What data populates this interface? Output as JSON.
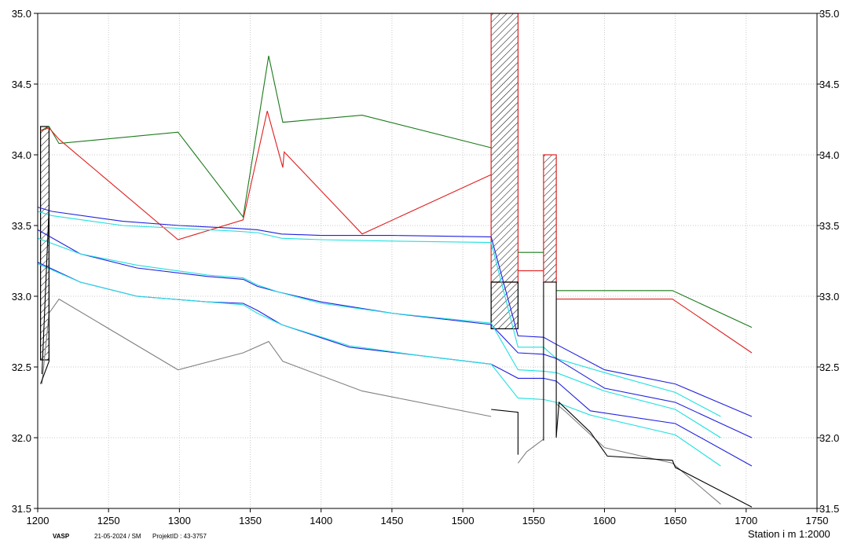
{
  "footer": {
    "company": "VASP",
    "date_user": "21-05-2024 / SM",
    "project": "ProjektID : 43-3757",
    "station_label": "Station i m  1:2000"
  },
  "chart_data": {
    "type": "line",
    "xlim": [
      1200,
      1750
    ],
    "ylim": [
      31.5,
      35.0
    ],
    "x_ticks": [
      1200,
      1250,
      1300,
      1350,
      1400,
      1450,
      1500,
      1550,
      1600,
      1650,
      1700,
      1750
    ],
    "x_tick_labels": [
      "1200",
      "1250",
      "1300",
      "1350",
      "1400",
      "1450",
      "1500",
      "1550",
      "1600",
      "1650",
      "1700",
      "1750"
    ],
    "y_ticks": [
      31.5,
      32.0,
      32.5,
      33.0,
      33.5,
      34.0,
      34.5,
      35.0
    ],
    "y_tick_labels": [
      "31.5",
      "32.0",
      "32.5",
      "33.0",
      "33.5",
      "34.0",
      "34.5",
      "35.0"
    ],
    "grid": true,
    "colors": {
      "terrain_green": "#1a7a1a",
      "terrain_red": "#e02020",
      "water_blue": "#2020e0",
      "water_cyan": "#20e0e0",
      "pipe_gray": "#808080",
      "pipe_black": "#000000",
      "hatch_red": "#e02020",
      "hatch_black": "#000000"
    },
    "series": [
      {
        "color": "#1a7a1a",
        "points": [
          [
            1202,
            34.17
          ],
          [
            1208,
            34.2
          ],
          [
            1215,
            34.08
          ],
          [
            1299,
            34.16
          ],
          [
            1345,
            33.56
          ],
          [
            1363,
            34.7
          ],
          [
            1373,
            34.23
          ],
          [
            1429,
            34.28
          ],
          [
            1520,
            34.05
          ]
        ]
      },
      {
        "color": "#1a7a1a",
        "points": [
          [
            1539,
            33.31
          ],
          [
            1557,
            33.31
          ]
        ]
      },
      {
        "color": "#1a7a1a",
        "points": [
          [
            1566,
            33.04
          ],
          [
            1648,
            33.04
          ],
          [
            1704,
            32.78
          ]
        ]
      },
      {
        "color": "#e02020",
        "points": [
          [
            1202,
            34.17
          ],
          [
            1208,
            34.19
          ],
          [
            1215,
            34.11
          ],
          [
            1299,
            33.4
          ],
          [
            1345,
            33.54
          ],
          [
            1362,
            34.31
          ],
          [
            1373,
            33.91
          ],
          [
            1374,
            34.02
          ],
          [
            1429,
            33.44
          ],
          [
            1520,
            33.86
          ]
        ]
      },
      {
        "color": "#e02020",
        "points": [
          [
            1539,
            33.18
          ],
          [
            1557,
            33.18
          ]
        ]
      },
      {
        "color": "#e02020",
        "points": [
          [
            1566,
            32.98
          ],
          [
            1648,
            32.98
          ],
          [
            1704,
            32.6
          ]
        ]
      },
      {
        "color": "#2020e0",
        "points": [
          [
            1200,
            33.63
          ],
          [
            1210,
            33.6
          ],
          [
            1260,
            33.53
          ],
          [
            1300,
            33.5
          ],
          [
            1340,
            33.48
          ],
          [
            1355,
            33.47
          ],
          [
            1372,
            33.44
          ],
          [
            1400,
            33.43
          ],
          [
            1450,
            33.43
          ],
          [
            1520,
            33.42
          ],
          [
            1539,
            32.72
          ],
          [
            1557,
            32.71
          ],
          [
            1566,
            32.66
          ],
          [
            1600,
            32.48
          ],
          [
            1650,
            32.38
          ],
          [
            1704,
            32.15
          ]
        ]
      },
      {
        "color": "#20e0e0",
        "points": [
          [
            1200,
            33.6
          ],
          [
            1210,
            33.57
          ],
          [
            1260,
            33.5
          ],
          [
            1300,
            33.48
          ],
          [
            1340,
            33.46
          ],
          [
            1355,
            33.45
          ],
          [
            1372,
            33.41
          ],
          [
            1400,
            33.4
          ],
          [
            1450,
            33.39
          ],
          [
            1520,
            33.38
          ],
          [
            1539,
            32.64
          ],
          [
            1557,
            32.64
          ],
          [
            1566,
            32.56
          ],
          [
            1600,
            32.46
          ],
          [
            1650,
            32.32
          ],
          [
            1682,
            32.15
          ]
        ]
      },
      {
        "color": "#2020e0",
        "points": [
          [
            1200,
            33.47
          ],
          [
            1230,
            33.3
          ],
          [
            1270,
            33.2
          ],
          [
            1320,
            33.14
          ],
          [
            1345,
            33.12
          ],
          [
            1355,
            33.07
          ],
          [
            1370,
            33.03
          ],
          [
            1400,
            32.96
          ],
          [
            1450,
            32.88
          ],
          [
            1520,
            32.8
          ],
          [
            1539,
            32.6
          ],
          [
            1557,
            32.59
          ],
          [
            1566,
            32.56
          ],
          [
            1600,
            32.35
          ],
          [
            1650,
            32.25
          ],
          [
            1704,
            32.0
          ]
        ]
      },
      {
        "color": "#20e0e0",
        "points": [
          [
            1200,
            33.41
          ],
          [
            1230,
            33.3
          ],
          [
            1270,
            33.22
          ],
          [
            1320,
            33.15
          ],
          [
            1345,
            33.13
          ],
          [
            1355,
            33.08
          ],
          [
            1370,
            33.03
          ],
          [
            1400,
            32.95
          ],
          [
            1450,
            32.88
          ],
          [
            1520,
            32.81
          ],
          [
            1539,
            32.48
          ],
          [
            1557,
            32.47
          ],
          [
            1566,
            32.46
          ],
          [
            1600,
            32.33
          ],
          [
            1650,
            32.2
          ],
          [
            1682,
            32.0
          ]
        ]
      },
      {
        "color": "#2020e0",
        "points": [
          [
            1200,
            33.24
          ],
          [
            1230,
            33.1
          ],
          [
            1270,
            33.0
          ],
          [
            1320,
            32.96
          ],
          [
            1345,
            32.95
          ],
          [
            1355,
            32.9
          ],
          [
            1372,
            32.8
          ],
          [
            1420,
            32.64
          ],
          [
            1470,
            32.58
          ],
          [
            1520,
            32.52
          ],
          [
            1539,
            32.42
          ],
          [
            1557,
            32.42
          ],
          [
            1566,
            32.4
          ],
          [
            1590,
            32.19
          ],
          [
            1650,
            32.1
          ],
          [
            1704,
            31.8
          ]
        ]
      },
      {
        "color": "#20e0e0",
        "points": [
          [
            1200,
            33.23
          ],
          [
            1230,
            33.1
          ],
          [
            1270,
            33.0
          ],
          [
            1320,
            32.96
          ],
          [
            1345,
            32.94
          ],
          [
            1355,
            32.88
          ],
          [
            1372,
            32.8
          ],
          [
            1420,
            32.65
          ],
          [
            1470,
            32.58
          ],
          [
            1520,
            32.52
          ],
          [
            1539,
            32.28
          ],
          [
            1557,
            32.27
          ],
          [
            1566,
            32.25
          ],
          [
            1590,
            32.16
          ],
          [
            1650,
            32.02
          ],
          [
            1682,
            31.8
          ]
        ]
      },
      {
        "color": "#808080",
        "points": [
          [
            1203,
            32.38
          ],
          [
            1208,
            32.88
          ],
          [
            1215,
            32.98
          ],
          [
            1299,
            32.48
          ],
          [
            1345,
            32.6
          ],
          [
            1363,
            32.68
          ],
          [
            1373,
            32.54
          ],
          [
            1429,
            32.33
          ],
          [
            1520,
            32.15
          ]
        ]
      },
      {
        "color": "#808080",
        "points": [
          [
            1539,
            31.82
          ],
          [
            1545,
            31.9
          ],
          [
            1557,
            31.99
          ]
        ]
      },
      {
        "color": "#808080",
        "points": [
          [
            1566,
            32.24
          ],
          [
            1573,
            32.18
          ],
          [
            1600,
            31.93
          ],
          [
            1648,
            31.82
          ],
          [
            1682,
            31.53
          ]
        ]
      },
      {
        "color": "#000000",
        "points": [
          [
            1202,
            32.38
          ],
          [
            1208,
            32.54
          ],
          [
            1208,
            33.62
          ],
          [
            1203,
            32.45
          ]
        ]
      },
      {
        "color": "#000000",
        "points": [
          [
            1520,
            32.2
          ],
          [
            1539,
            32.18
          ],
          [
            1539,
            31.88
          ]
        ]
      },
      {
        "color": "#000000",
        "points": [
          [
            1557,
            33.1
          ],
          [
            1566,
            33.1
          ],
          [
            1566,
            32.0
          ]
        ]
      },
      {
        "color": "#000000",
        "points": [
          [
            1566,
            32.01
          ],
          [
            1568,
            32.25
          ],
          [
            1590,
            32.04
          ],
          [
            1602,
            31.87
          ],
          [
            1648,
            31.84
          ],
          [
            1650,
            31.79
          ],
          [
            1704,
            31.51
          ]
        ]
      },
      {
        "color": "#000000",
        "points": [
          [
            1557,
            31.98
          ],
          [
            1557,
            33.1
          ]
        ]
      }
    ],
    "hatched_areas": [
      {
        "color": "#000000",
        "x": [
          1202,
          1208
        ],
        "y": [
          32.55,
          34.2
        ]
      },
      {
        "color": "#e02020",
        "x": [
          1520,
          1539
        ],
        "y": [
          33.1,
          35.0
        ]
      },
      {
        "color": "#000000",
        "x": [
          1520,
          1539
        ],
        "y": [
          32.77,
          33.1
        ]
      },
      {
        "color": "#e02020",
        "x": [
          1557,
          1566
        ],
        "y": [
          33.1,
          34.0
        ]
      }
    ]
  }
}
